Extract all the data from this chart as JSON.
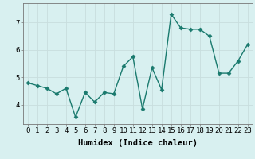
{
  "title": "",
  "xlabel": "Humidex (Indice chaleur)",
  "x": [
    0,
    1,
    2,
    3,
    4,
    5,
    6,
    7,
    8,
    9,
    10,
    11,
    12,
    13,
    14,
    15,
    16,
    17,
    18,
    19,
    20,
    21,
    22,
    23
  ],
  "y": [
    4.8,
    4.7,
    4.6,
    4.4,
    4.6,
    3.55,
    4.45,
    4.1,
    4.45,
    4.4,
    5.4,
    5.75,
    3.85,
    5.35,
    4.55,
    7.3,
    6.8,
    6.75,
    6.75,
    6.5,
    5.15,
    5.15,
    5.6,
    6.2
  ],
  "line_color": "#1a7a6e",
  "marker": "D",
  "markersize": 2.5,
  "linewidth": 1.0,
  "bg_color": "#d8f0f0",
  "grid_color": "#c8dede",
  "yticks": [
    4,
    5,
    6,
    7
  ],
  "ylim": [
    3.3,
    7.7
  ],
  "xlim": [
    -0.5,
    23.5
  ],
  "xlabel_fontsize": 7.5,
  "tick_fontsize": 6.5
}
